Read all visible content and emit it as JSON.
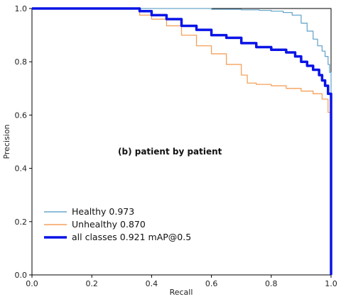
{
  "chart_data": {
    "type": "line",
    "title": "",
    "annotation": "(b) patient by patient",
    "xlabel": "Recall",
    "ylabel": "Precision",
    "xlim": [
      0,
      1
    ],
    "ylim": [
      0,
      1
    ],
    "xticks": [
      "0.0",
      "0.2",
      "0.4",
      "0.6",
      "0.8",
      "1.0"
    ],
    "yticks": [
      "0.0",
      "0.2",
      "0.4",
      "0.6",
      "0.8",
      "1.0"
    ],
    "grid": false,
    "legend_position": "lower-left",
    "series": [
      {
        "name": "Healthy 0.973",
        "color": "#6aa7cc",
        "x": [
          0,
          0.33,
          0.5,
          0.6,
          0.7,
          0.76,
          0.8,
          0.84,
          0.87,
          0.9,
          0.92,
          0.94,
          0.955,
          0.97,
          0.98,
          0.99,
          0.995,
          1.0,
          1.0
        ],
        "y": [
          1.0,
          1.0,
          1.0,
          0.997,
          0.995,
          0.993,
          0.99,
          0.985,
          0.975,
          0.945,
          0.915,
          0.885,
          0.86,
          0.84,
          0.82,
          0.79,
          0.76,
          0.73,
          0.0
        ]
      },
      {
        "name": "Unhealthy 0.870",
        "color": "#f5a05a",
        "x": [
          0,
          0.33,
          0.36,
          0.4,
          0.45,
          0.5,
          0.55,
          0.6,
          0.65,
          0.7,
          0.72,
          0.75,
          0.8,
          0.85,
          0.9,
          0.94,
          0.97,
          0.99,
          1.0,
          1.0
        ],
        "y": [
          1.0,
          1.0,
          0.975,
          0.96,
          0.935,
          0.9,
          0.86,
          0.83,
          0.79,
          0.75,
          0.72,
          0.715,
          0.71,
          0.7,
          0.69,
          0.68,
          0.66,
          0.61,
          0.55,
          0.0
        ]
      },
      {
        "name": "all classes 0.921 mAP@0.5",
        "color": "#0a14e6",
        "x": [
          0,
          0.33,
          0.36,
          0.4,
          0.45,
          0.5,
          0.55,
          0.6,
          0.65,
          0.7,
          0.75,
          0.8,
          0.85,
          0.88,
          0.9,
          0.92,
          0.94,
          0.96,
          0.97,
          0.98,
          0.99,
          1.0,
          1.0
        ],
        "y": [
          1.0,
          1.0,
          0.99,
          0.975,
          0.96,
          0.935,
          0.92,
          0.9,
          0.89,
          0.87,
          0.855,
          0.845,
          0.835,
          0.82,
          0.8,
          0.785,
          0.77,
          0.75,
          0.73,
          0.71,
          0.68,
          0.64,
          0.0
        ]
      }
    ]
  }
}
